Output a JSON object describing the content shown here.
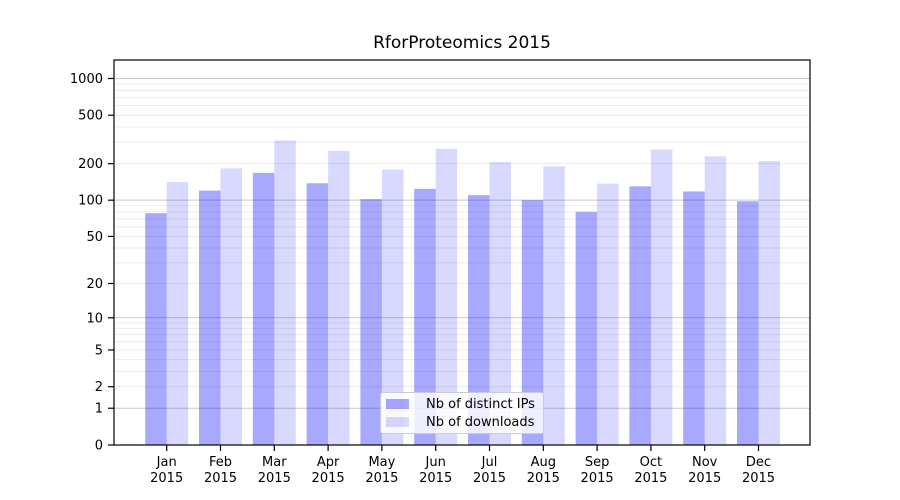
{
  "chart_data": {
    "type": "bar",
    "title": "RforProteomics 2015",
    "yscale": "log1p",
    "grid": "on",
    "categories": [
      "Jan",
      "Feb",
      "Mar",
      "Apr",
      "May",
      "Jun",
      "Jul",
      "Aug",
      "Sep",
      "Oct",
      "Nov",
      "Dec"
    ],
    "category_year": "2015",
    "series": [
      {
        "name": "Nb of distinct IPs",
        "color": "rgba(0,0,255,0.34)",
        "values": [
          78,
          120,
          168,
          138,
          102,
          124,
          110,
          100,
          80,
          130,
          118,
          98
        ]
      },
      {
        "name": "Nb of downloads",
        "color": "rgba(0,0,255,0.15)",
        "values": [
          141,
          183,
          310,
          255,
          179,
          265,
          206,
          190,
          137,
          261,
          230,
          210
        ]
      }
    ],
    "yticks": [
      0,
      1,
      2,
      5,
      10,
      20,
      50,
      100,
      200,
      500,
      1000
    ],
    "ylim": [
      0,
      1420
    ],
    "legend_position": "lower center",
    "colors": {
      "major_grid": "#c9c9c9",
      "minor_grid": "#ececec",
      "frame": "#000000",
      "legend_bg": "rgba(255,255,255,0.8)",
      "legend_border": "#cccccc"
    }
  }
}
